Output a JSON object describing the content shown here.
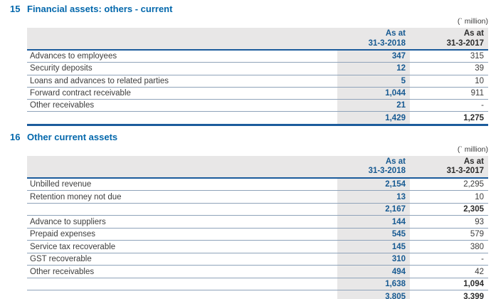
{
  "colors": {
    "heading_blue": "#0468ac",
    "value_blue": "#175a92",
    "thick_line_blue": "#1c5c9c",
    "thin_line_blue": "#8fa3ba",
    "header_fill_gray": "#e8e7e7",
    "body_text": "#3d3d3d"
  },
  "sections": [
    {
      "number": "15",
      "title": "Financial assets: others - current",
      "unit_note": "(` million)",
      "col_2018": {
        "line1": "As at",
        "line2": "31-3-2018"
      },
      "col_2017": {
        "line1": "As at",
        "line2": "31-3-2017"
      },
      "rows": [
        {
          "label": "Advances to employees",
          "v2018": "347",
          "v2017": "315",
          "type": "normal"
        },
        {
          "label": "Security deposits",
          "v2018": "12",
          "v2017": "39",
          "type": "normal"
        },
        {
          "label": "Loans and advances to related parties",
          "v2018": "5",
          "v2017": "10",
          "type": "normal"
        },
        {
          "label": "Forward contract receivable",
          "v2018": "1,044",
          "v2017": "911",
          "type": "normal"
        },
        {
          "label": "Other receivables",
          "v2018": "21",
          "v2017": "-",
          "type": "normal"
        },
        {
          "label": "",
          "v2018": "1,429",
          "v2017": "1,275",
          "type": "total"
        }
      ]
    },
    {
      "number": "16",
      "title": "Other current assets",
      "unit_note": "(` million)",
      "col_2018": {
        "line1": "As at",
        "line2": "31-3-2018"
      },
      "col_2017": {
        "line1": "As at",
        "line2": "31-3-2017"
      },
      "rows": [
        {
          "label": "Unbilled revenue",
          "v2018": "2,154",
          "v2017": "2,295",
          "type": "normal"
        },
        {
          "label": "Retention money not due",
          "v2018": "13",
          "v2017": "10",
          "type": "normal"
        },
        {
          "label": "",
          "v2018": "2,167",
          "v2017": "2,305",
          "type": "subtotal"
        },
        {
          "label": "Advance to suppliers",
          "v2018": "144",
          "v2017": "93",
          "type": "normal"
        },
        {
          "label": "Prepaid expenses",
          "v2018": "545",
          "v2017": "579",
          "type": "normal"
        },
        {
          "label": "Service tax recoverable",
          "v2018": "145",
          "v2017": "380",
          "type": "normal"
        },
        {
          "label": "GST recoverable",
          "v2018": "310",
          "v2017": "-",
          "type": "normal"
        },
        {
          "label": "Other receivables",
          "v2018": "494",
          "v2017": "42",
          "type": "normal"
        },
        {
          "label": "",
          "v2018": "1,638",
          "v2017": "1,094",
          "type": "subtotal"
        },
        {
          "label": "",
          "v2018": "3,805",
          "v2017": "3,399",
          "type": "total"
        }
      ]
    }
  ]
}
